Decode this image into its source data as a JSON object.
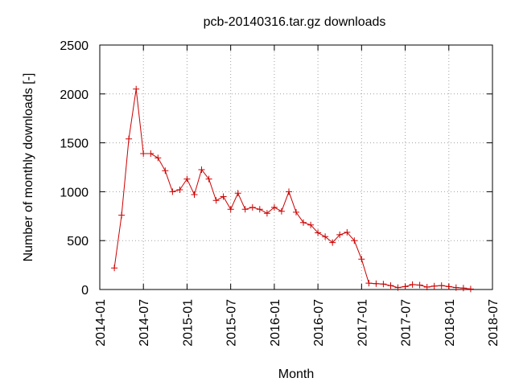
{
  "chart_data": {
    "type": "line",
    "title": "pcb-20140316.tar.gz downloads",
    "xlabel": "Month",
    "ylabel": "Number of monthly downloads [-]",
    "x_axis_type": "date",
    "xlim": [
      "2014-01",
      "2018-07"
    ],
    "ylim": [
      0,
      2500
    ],
    "x_ticks": [
      "2014-01",
      "2014-07",
      "2015-01",
      "2015-07",
      "2016-01",
      "2016-07",
      "2017-01",
      "2017-07",
      "2018-01",
      "2018-07"
    ],
    "y_ticks": [
      0,
      500,
      1000,
      1500,
      2000,
      2500
    ],
    "grid": true,
    "legend": "none",
    "series": [
      {
        "color": "#cc0000",
        "marker": "plus",
        "x": [
          "2014-03",
          "2014-04",
          "2014-05",
          "2014-06",
          "2014-07",
          "2014-08",
          "2014-09",
          "2014-10",
          "2014-11",
          "2014-12",
          "2015-01",
          "2015-02",
          "2015-03",
          "2015-04",
          "2015-05",
          "2015-06",
          "2015-07",
          "2015-08",
          "2015-09",
          "2015-10",
          "2015-11",
          "2015-12",
          "2016-01",
          "2016-02",
          "2016-03",
          "2016-04",
          "2016-05",
          "2016-06",
          "2016-07",
          "2016-08",
          "2016-09",
          "2016-10",
          "2016-11",
          "2016-12",
          "2017-01",
          "2017-02",
          "2017-03",
          "2017-04",
          "2017-05",
          "2017-06",
          "2017-07",
          "2017-08",
          "2017-09",
          "2017-10",
          "2017-11",
          "2017-12",
          "2018-01",
          "2018-02",
          "2018-03",
          "2018-04"
        ],
        "values": [
          220,
          760,
          1540,
          2050,
          1390,
          1390,
          1345,
          1215,
          1000,
          1020,
          1130,
          970,
          1225,
          1130,
          910,
          950,
          820,
          985,
          820,
          840,
          820,
          780,
          840,
          800,
          1000,
          790,
          685,
          660,
          580,
          540,
          480,
          560,
          585,
          500,
          310,
          65,
          60,
          55,
          40,
          20,
          30,
          50,
          45,
          25,
          35,
          40,
          30,
          20,
          15,
          5
        ]
      }
    ]
  }
}
